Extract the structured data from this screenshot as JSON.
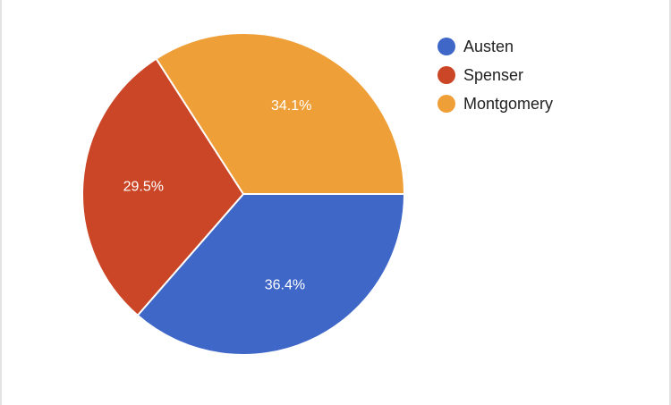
{
  "chart_data": {
    "type": "pie",
    "title": "",
    "start_angle_deg": 0,
    "direction": "clockwise",
    "series": [
      {
        "name": "Austen",
        "value": 36.4,
        "label": "36.4%",
        "color": "#3f67c8"
      },
      {
        "name": "Spenser",
        "value": 29.5,
        "label": "29.5%",
        "color": "#cb4627"
      },
      {
        "name": "Montgomery",
        "value": 34.1,
        "label": "34.1%",
        "color": "#ef9f37"
      }
    ],
    "legend_position": "right"
  }
}
